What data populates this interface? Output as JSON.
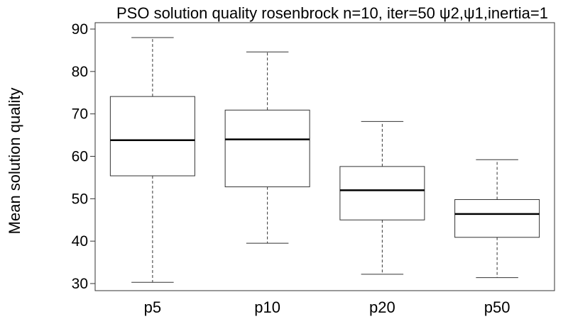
{
  "chart_data": {
    "type": "box",
    "title": "PSO solution quality rosenbrock n=10, iter=50 ψ2,ψ1,inertia=1",
    "xlabel": "",
    "ylabel": "Mean solution quality",
    "ylim": [
      28,
      91
    ],
    "yticks": [
      30,
      40,
      50,
      60,
      70,
      80,
      90
    ],
    "categories": [
      "p5",
      "p10",
      "p20",
      "p50"
    ],
    "boxes": [
      {
        "label": "p5",
        "min": 30.3,
        "q1": 55.4,
        "median": 63.8,
        "q3": 74.1,
        "max": 88.0
      },
      {
        "label": "p10",
        "min": 39.5,
        "q1": 52.8,
        "median": 64.0,
        "q3": 70.9,
        "max": 84.6
      },
      {
        "label": "p20",
        "min": 32.2,
        "q1": 45.0,
        "median": 52.0,
        "q3": 57.6,
        "max": 68.2
      },
      {
        "label": "p50",
        "min": 31.4,
        "q1": 40.9,
        "median": 46.4,
        "q3": 49.8,
        "max": 59.2
      }
    ],
    "grid": false,
    "legend": "none"
  }
}
